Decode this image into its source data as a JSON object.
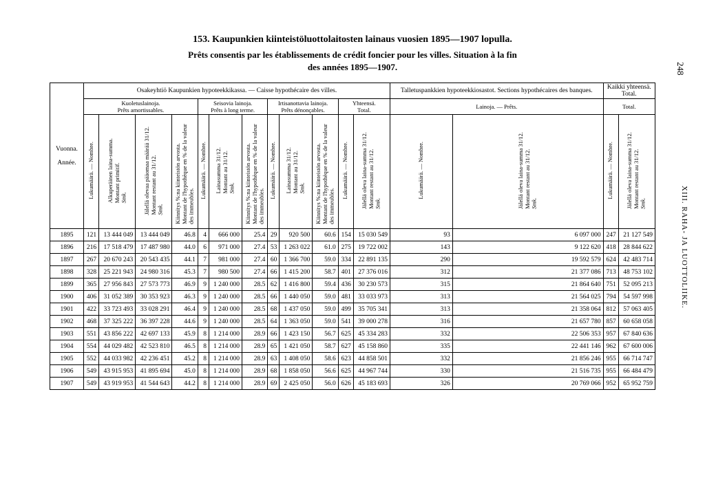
{
  "page_number": "248",
  "side_caption": "XIII. RAHA- JA LUOTTOLIIKE.",
  "titles": {
    "t1": "153.  Kaupunkien kiinteistöluottolaitosten lainaus vuosien 1895—1907 lopulla.",
    "t2": "Prêts consentis par les établissements de crédit foncier pour les villes.   Situation à la fin",
    "t3": "des années 1895—1907."
  },
  "headers": {
    "grpA": "Osakeyhtiö Kaupunkien hypoteekkikassa. — Caisse hypothécaire des villes.",
    "grpB": "Talletuspankkien hypoteekkiosastot. Sections hypothécaires des banques.",
    "grpC": "Kaikki yhteensä.",
    "grpC2": "Total.",
    "sub_a1": "Kuoletuslainoja.",
    "sub_a1b": "Prêts amortissables.",
    "sub_a2": "Seisovia lainoja.",
    "sub_a2b": "Prêts à long terme.",
    "sub_a3": "Irtisanottavia lainoja.",
    "sub_a3b": "Prêts dénonçables.",
    "sub_a4": "Yhteensä.",
    "sub_a4b": "Total.",
    "sub_b1": "Lainoja. — Prêts.",
    "vuonna": "Vuonna.",
    "annee": "Année.",
    "c_luku": "Lukumäärä. — Nombre.",
    "c_primitif": "Alkuperäinen laina-summa.",
    "c_primitif2": "Montant primitif.",
    "c_restant": "Jälellä olevaa pääomaa määrää 31/12.",
    "c_restant2": "Montant restant au 31/12.",
    "c_kiint": "Kiinnitys %:na kiinteistön arvosta.",
    "c_kiint2": "Montant de l'hypothèque en % de la valeur des immeubles.",
    "c_lainasumma": "Lainasumma 31/12.",
    "c_lainasumma2": "Montant au 31/12.",
    "c_jalella": "Jälellä oleva laina-summa 31/12.",
    "c_jalella2": "Montant restant au 31/12."
  },
  "rows": [
    [
      "1895",
      "121",
      "13 444 049",
      "13 444 049",
      "46.8",
      "4",
      "666 000",
      "25.4",
      "29",
      "920 500",
      "60.6",
      "154",
      "15 030 549",
      "93",
      "6 097 000",
      "247",
      "21 127 549"
    ],
    [
      "1896",
      "216",
      "17 518 479",
      "17 487 980",
      "44.0",
      "6",
      "971 000",
      "27.4",
      "53",
      "1 263 022",
      "61.0",
      "275",
      "19 722 002",
      "143",
      "9 122 620",
      "418",
      "28 844 622"
    ],
    [
      "1897",
      "267",
      "20 670 243",
      "20 543 435",
      "44.1",
      "7",
      "981 000",
      "27.4",
      "60",
      "1 366 700",
      "59.0",
      "334",
      "22 891 135",
      "290",
      "19 592 579",
      "624",
      "42 483 714"
    ],
    [
      "1898",
      "328",
      "25 221 943",
      "24 980 316",
      "45.3",
      "7",
      "980 500",
      "27.4",
      "66",
      "1 415 200",
      "58.7",
      "401",
      "27 376 016",
      "312",
      "21 377 086",
      "713",
      "48 753 102"
    ],
    [
      "1899",
      "365",
      "27 956 843",
      "27 573 773",
      "46.9",
      "9",
      "1 240 000",
      "28.5",
      "62",
      "1 416 800",
      "59.4",
      "436",
      "30 230 573",
      "315",
      "21 864 640",
      "751",
      "52 095 213"
    ],
    [
      "1900",
      "406",
      "31 052 389",
      "30 353 923",
      "46.3",
      "9",
      "1 240 000",
      "28.5",
      "66",
      "1 440 050",
      "59.0",
      "481",
      "33 033 973",
      "313",
      "21 564 025",
      "794",
      "54 597 998"
    ],
    [
      "1901",
      "422",
      "33 723 493",
      "33 028 291",
      "46.4",
      "9",
      "1 240 000",
      "28.5",
      "68",
      "1 437 050",
      "59.0",
      "499",
      "35 705 341",
      "313",
      "21 358 064",
      "812",
      "57 063 405"
    ],
    [
      "1902",
      "468",
      "37 325 222",
      "36 397 228",
      "44.6",
      "9",
      "1 240 000",
      "28.5",
      "64",
      "1 363 050",
      "59.0",
      "541",
      "39 000 278",
      "316",
      "21 657 780",
      "857",
      "60 658 058"
    ],
    [
      "1903",
      "551",
      "43 856 222",
      "42 697 133",
      "45.9",
      "8",
      "1 214 000",
      "28.9",
      "66",
      "1 423 150",
      "56.7",
      "625",
      "45 334 283",
      "332",
      "22 506 353",
      "957",
      "67 840 636"
    ],
    [
      "1904",
      "554",
      "44 029 482",
      "42 523 810",
      "46.5",
      "8",
      "1 214 000",
      "28.9",
      "65",
      "1 421 050",
      "58.7",
      "627",
      "45 158 860",
      "335",
      "22 441 146",
      "962",
      "67 600 006"
    ],
    [
      "1905",
      "552",
      "44 033 982",
      "42 236 451",
      "45.2",
      "8",
      "1 214 000",
      "28.9",
      "63",
      "1 408 050",
      "58.6",
      "623",
      "44 858 501",
      "332",
      "21 856 246",
      "955",
      "66 714 747"
    ],
    [
      "1906",
      "549",
      "43 915 953",
      "41 895 694",
      "45.0",
      "8",
      "1 214 000",
      "28.9",
      "68",
      "1 858 050",
      "56.6",
      "625",
      "44 967 744",
      "330",
      "21 516 735",
      "955",
      "66 484 479"
    ],
    [
      "1907",
      "549",
      "43 919 953",
      "41 544 643",
      "44.2",
      "8",
      "1 214 000",
      "28.9",
      "69",
      "2 425 050",
      "56.0",
      "626",
      "45 183 693",
      "326",
      "20 769 066",
      "952",
      "65 952 759"
    ]
  ]
}
